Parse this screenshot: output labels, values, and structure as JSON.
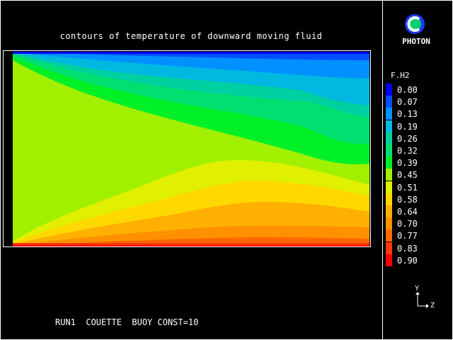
{
  "plot_title": "contours of temperature of downward moving fluid",
  "brand": "PHOTON",
  "legend": {
    "variable": "F.H2",
    "entries": [
      {
        "value": "0.00",
        "color": "#0000ff"
      },
      {
        "value": "0.07",
        "color": "#0050ff"
      },
      {
        "value": "0.13",
        "color": "#0090ff"
      },
      {
        "value": "0.19",
        "color": "#00b8e0"
      },
      {
        "value": "0.26",
        "color": "#00d0a0"
      },
      {
        "value": "0.32",
        "color": "#00e070"
      },
      {
        "value": "0.39",
        "color": "#00f028"
      },
      {
        "value": "0.45",
        "color": "#a0f000"
      },
      {
        "value": "0.51",
        "color": "#e0f000"
      },
      {
        "value": "0.58",
        "color": "#ffd800"
      },
      {
        "value": "0.64",
        "color": "#ffb000"
      },
      {
        "value": "0.70",
        "color": "#ff9000"
      },
      {
        "value": "0.77",
        "color": "#ff6800"
      },
      {
        "value": "0.83",
        "color": "#ff3800"
      },
      {
        "value": "0.90",
        "color": "#ff0000"
      }
    ]
  },
  "footer": "RUN1  COUETTE  BUOY CONST=10",
  "axis": {
    "y_label": "Y",
    "z_label": "Z"
  }
}
